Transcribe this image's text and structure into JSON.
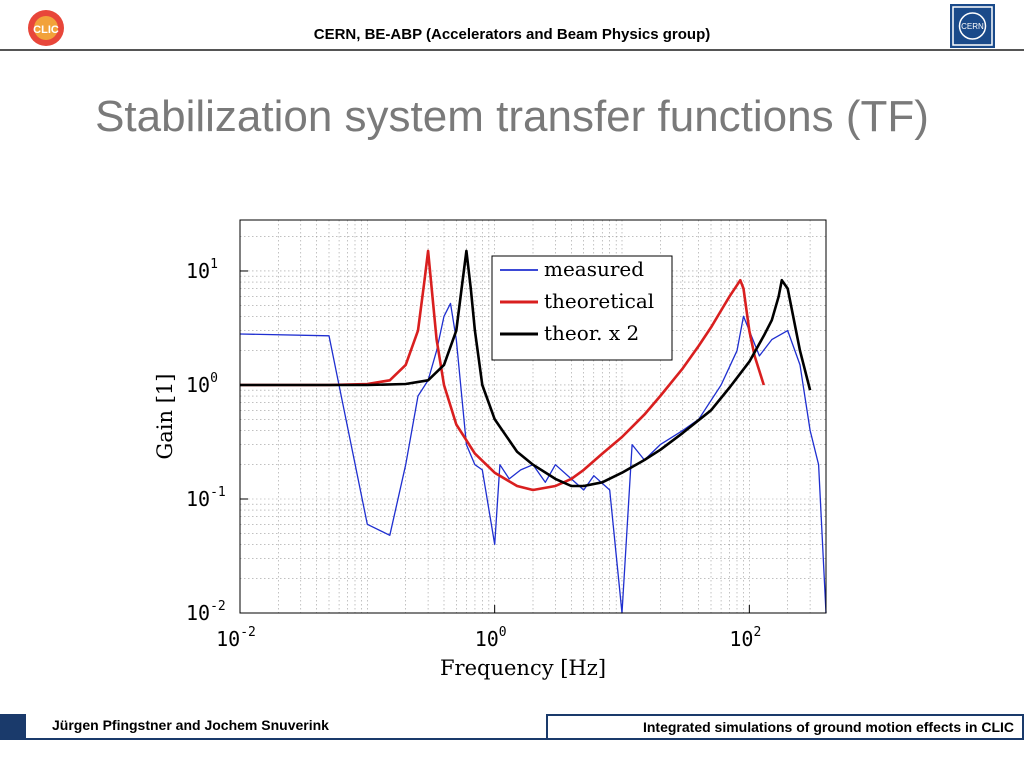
{
  "header": {
    "text": "CERN, BE-ABP (Accelerators and Beam Physics group)",
    "left_logo_icon": "clic-logo-icon",
    "right_logo_icon": "cern-logo-icon",
    "left_logo_text": "CLIC",
    "right_logo_text": "CERN"
  },
  "title": "Stabilization system transfer functions (TF)",
  "footer": {
    "left": "Jürgen Pfingstner and Jochem Snuverink",
    "right": "Integrated simulations of ground motion effects in CLIC"
  },
  "colors": {
    "measured": "#1f2fd0",
    "theoretical": "#d91f1f",
    "theor_x2": "#000000",
    "title": "#7a7a7a",
    "footer_accent": "#1a3a6b"
  },
  "chart_data": {
    "type": "line",
    "xlabel": "Frequency [Hz]",
    "ylabel": "Gain [1]",
    "xscale": "log",
    "yscale": "log",
    "xlim": [
      0.01,
      400
    ],
    "ylim": [
      0.01,
      28
    ],
    "grid": true,
    "legend_position": "top-center",
    "xticks": [
      {
        "base": "10",
        "exp": "-2"
      },
      {
        "base": "10",
        "exp": "0"
      },
      {
        "base": "10",
        "exp": "2"
      }
    ],
    "yticks": [
      {
        "base": "10",
        "exp": "1"
      },
      {
        "base": "10",
        "exp": "0"
      },
      {
        "base": "10",
        "exp": "-1"
      },
      {
        "base": "10",
        "exp": "-2"
      }
    ],
    "series": [
      {
        "name": "measured",
        "x": [
          0.01,
          0.05,
          0.1,
          0.15,
          0.2,
          0.25,
          0.3,
          0.35,
          0.4,
          0.45,
          0.5,
          0.6,
          0.7,
          0.8,
          1.0,
          1.1,
          1.3,
          1.6,
          2,
          2.5,
          3,
          4,
          5,
          6,
          8,
          10,
          12,
          15,
          20,
          30,
          40,
          60,
          80,
          90,
          100,
          120,
          150,
          200,
          250,
          300,
          350,
          400
        ],
        "y": [
          2.8,
          2.7,
          0.06,
          0.048,
          0.2,
          0.8,
          1.1,
          2.0,
          4.0,
          5.2,
          2.5,
          0.3,
          0.2,
          0.18,
          0.04,
          0.2,
          0.15,
          0.18,
          0.2,
          0.14,
          0.2,
          0.15,
          0.12,
          0.16,
          0.12,
          0.01,
          0.3,
          0.22,
          0.3,
          0.4,
          0.5,
          1.0,
          2.0,
          4.0,
          3.0,
          1.8,
          2.5,
          3.0,
          1.5,
          0.4,
          0.2,
          0.01
        ]
      },
      {
        "name": "theoretical",
        "x": [
          0.01,
          0.05,
          0.1,
          0.15,
          0.2,
          0.25,
          0.28,
          0.3,
          0.32,
          0.35,
          0.4,
          0.5,
          0.7,
          1.0,
          1.5,
          2,
          3,
          4,
          5,
          7,
          10,
          15,
          20,
          30,
          40,
          50,
          60,
          70,
          80,
          85,
          90,
          100,
          110,
          130
        ],
        "y": [
          1.0,
          1.0,
          1.02,
          1.1,
          1.5,
          3.0,
          8.0,
          15,
          7.0,
          2.5,
          1.0,
          0.45,
          0.25,
          0.17,
          0.13,
          0.12,
          0.13,
          0.15,
          0.18,
          0.25,
          0.35,
          0.55,
          0.8,
          1.4,
          2.2,
          3.2,
          4.5,
          6.0,
          7.5,
          8.3,
          7.0,
          3.0,
          1.8,
          1.0
        ]
      },
      {
        "name": "theor. x 2",
        "x": [
          0.01,
          0.1,
          0.2,
          0.3,
          0.4,
          0.5,
          0.55,
          0.6,
          0.65,
          0.7,
          0.8,
          1.0,
          1.5,
          2,
          3,
          4,
          5,
          7,
          10,
          15,
          20,
          30,
          50,
          70,
          100,
          130,
          150,
          170,
          180,
          200,
          250,
          300
        ],
        "y": [
          1.0,
          1.0,
          1.02,
          1.1,
          1.5,
          3.0,
          7.0,
          15,
          7.0,
          3.0,
          1.0,
          0.5,
          0.26,
          0.2,
          0.15,
          0.13,
          0.13,
          0.14,
          0.17,
          0.22,
          0.27,
          0.38,
          0.6,
          0.95,
          1.6,
          2.7,
          3.7,
          6.0,
          8.3,
          7.0,
          2.0,
          0.9
        ]
      }
    ]
  }
}
